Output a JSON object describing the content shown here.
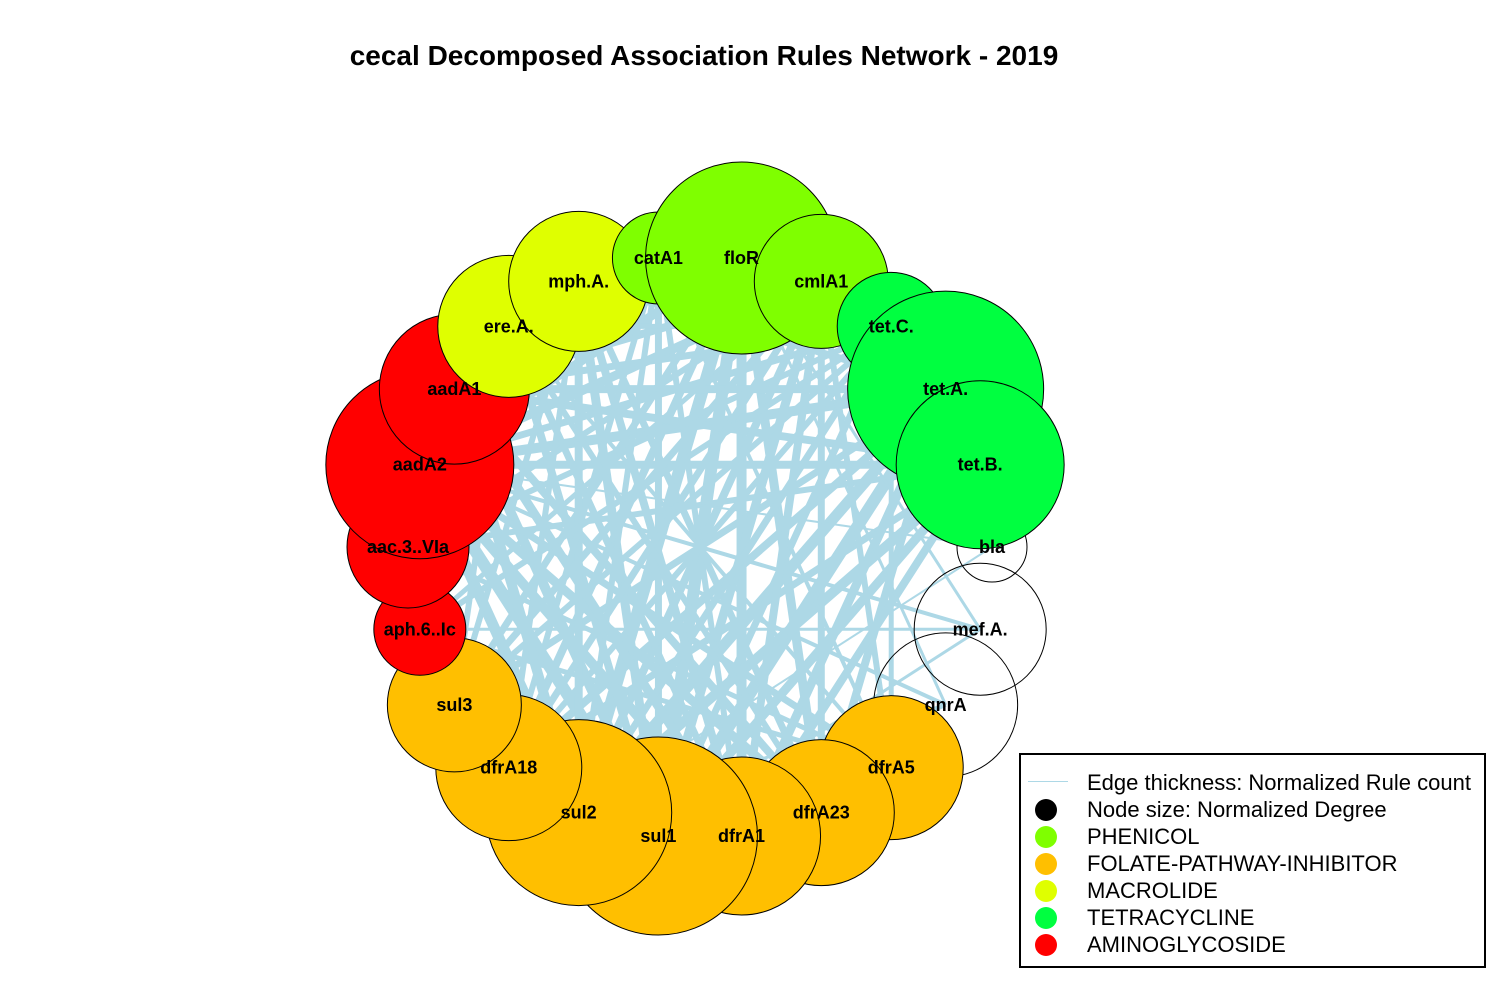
{
  "title": "cecal Decomposed Association Rules Network - 2019",
  "colors": {
    "edge": "#add8e6",
    "PHENICOL": "#7fff00",
    "FOLATE-PATHWAY-INHIBITOR": "#ffbf00",
    "MACROLIDE": "#dfff00",
    "TETRACYCLINE": "#00ff40",
    "AMINOGLYCOSIDE": "#ff0000",
    "none": "#ffffff"
  },
  "nodes": [
    {
      "label": "bla",
      "class": "none",
      "size": 35
    },
    {
      "label": "mef.A.",
      "class": "none",
      "size": 66
    },
    {
      "label": "qnrA",
      "class": "none",
      "size": 72
    },
    {
      "label": "dfrA5",
      "class": "FOLATE-PATHWAY-INHIBITOR",
      "size": 72
    },
    {
      "label": "dfrA23",
      "class": "FOLATE-PATHWAY-INHIBITOR",
      "size": 73
    },
    {
      "label": "dfrA1",
      "class": "FOLATE-PATHWAY-INHIBITOR",
      "size": 79
    },
    {
      "label": "sul1",
      "class": "FOLATE-PATHWAY-INHIBITOR",
      "size": 99
    },
    {
      "label": "sul2",
      "class": "FOLATE-PATHWAY-INHIBITOR",
      "size": 93
    },
    {
      "label": "dfrA18",
      "class": "FOLATE-PATHWAY-INHIBITOR",
      "size": 73
    },
    {
      "label": "sul3",
      "class": "FOLATE-PATHWAY-INHIBITOR",
      "size": 67
    },
    {
      "label": "aph.6..Ic",
      "class": "AMINOGLYCOSIDE",
      "size": 46
    },
    {
      "label": "aac.3..VIa",
      "class": "AMINOGLYCOSIDE",
      "size": 61
    },
    {
      "label": "aadA2",
      "class": "AMINOGLYCOSIDE",
      "size": 94
    },
    {
      "label": "aadA1",
      "class": "AMINOGLYCOSIDE",
      "size": 75
    },
    {
      "label": "ere.A.",
      "class": "MACROLIDE",
      "size": 71
    },
    {
      "label": "mph.A.",
      "class": "MACROLIDE",
      "size": 70
    },
    {
      "label": "catA1",
      "class": "PHENICOL",
      "size": 46
    },
    {
      "label": "floR",
      "class": "PHENICOL",
      "size": 96
    },
    {
      "label": "cmlA1",
      "class": "PHENICOL",
      "size": 67
    },
    {
      "label": "tet.C.",
      "class": "TETRACYCLINE",
      "size": 54
    },
    {
      "label": "tet.A.",
      "class": "TETRACYCLINE",
      "size": 98
    },
    {
      "label": "tet.B.",
      "class": "TETRACYCLINE",
      "size": 84
    }
  ],
  "edges": [
    [
      "floR",
      "sul1",
      12
    ],
    [
      "floR",
      "sul2",
      12
    ],
    [
      "floR",
      "dfrA1",
      10
    ],
    [
      "floR",
      "tet.A.",
      11
    ],
    [
      "floR",
      "aadA2",
      9
    ],
    [
      "floR",
      "dfrA23",
      9
    ],
    [
      "floR",
      "dfrA18",
      8
    ],
    [
      "floR",
      "aadA1",
      8
    ],
    [
      "floR",
      "sul3",
      7
    ],
    [
      "floR",
      "tet.B.",
      8
    ],
    [
      "tet.A.",
      "sul1",
      12
    ],
    [
      "tet.A.",
      "sul2",
      11
    ],
    [
      "tet.A.",
      "aadA2",
      10
    ],
    [
      "tet.A.",
      "dfrA1",
      9
    ],
    [
      "tet.A.",
      "dfrA18",
      8
    ],
    [
      "tet.A.",
      "aadA1",
      8
    ],
    [
      "tet.A.",
      "mph.A.",
      7
    ],
    [
      "tet.A.",
      "sul3",
      7
    ],
    [
      "tet.A.",
      "dfrA23",
      8
    ],
    [
      "tet.B.",
      "sul2",
      10
    ],
    [
      "tet.B.",
      "sul1",
      9
    ],
    [
      "tet.B.",
      "aadA1",
      8
    ],
    [
      "tet.B.",
      "aadA2",
      8
    ],
    [
      "tet.B.",
      "dfrA1",
      8
    ],
    [
      "tet.B.",
      "dfrA18",
      7
    ],
    [
      "tet.B.",
      "aac.3..VIa",
      6
    ],
    [
      "sul1",
      "aadA2",
      12
    ],
    [
      "sul1",
      "aadA1",
      10
    ],
    [
      "sul1",
      "mph.A.",
      9
    ],
    [
      "sul1",
      "ere.A.",
      8
    ],
    [
      "sul1",
      "cmlA1",
      9
    ],
    [
      "sul1",
      "catA1",
      7
    ],
    [
      "sul1",
      "tet.C.",
      7
    ],
    [
      "sul1",
      "dfrA1",
      10
    ],
    [
      "sul2",
      "aadA2",
      11
    ],
    [
      "sul2",
      "aadA1",
      10
    ],
    [
      "sul2",
      "mph.A.",
      8
    ],
    [
      "sul2",
      "cmlA1",
      8
    ],
    [
      "sul2",
      "catA1",
      6
    ],
    [
      "sul2",
      "tet.C.",
      7
    ],
    [
      "sul2",
      "dfrA5",
      6
    ],
    [
      "aadA2",
      "dfrA1",
      10
    ],
    [
      "aadA2",
      "dfrA23",
      9
    ],
    [
      "aadA2",
      "dfrA5",
      7
    ],
    [
      "aadA2",
      "cmlA1",
      9
    ],
    [
      "aadA2",
      "mph.A.",
      7
    ],
    [
      "aadA2",
      "tet.C.",
      7
    ],
    [
      "aadA2",
      "qnrA",
      4
    ],
    [
      "aadA2",
      "mef.A.",
      4
    ],
    [
      "aadA1",
      "dfrA1",
      9
    ],
    [
      "aadA1",
      "dfrA23",
      8
    ],
    [
      "aadA1",
      "cmlA1",
      8
    ],
    [
      "aadA1",
      "tet.C.",
      7
    ],
    [
      "aadA1",
      "catA1",
      6
    ],
    [
      "dfrA1",
      "mph.A.",
      8
    ],
    [
      "dfrA1",
      "cmlA1",
      8
    ],
    [
      "dfrA1",
      "ere.A.",
      7
    ],
    [
      "dfrA1",
      "catA1",
      6
    ],
    [
      "dfrA23",
      "mph.A.",
      7
    ],
    [
      "dfrA23",
      "cmlA1",
      7
    ],
    [
      "dfrA23",
      "ere.A.",
      6
    ],
    [
      "dfrA18",
      "cmlA1",
      7
    ],
    [
      "dfrA18",
      "mph.A.",
      6
    ],
    [
      "dfrA18",
      "catA1",
      6
    ],
    [
      "dfrA18",
      "tet.C.",
      6
    ],
    [
      "sul3",
      "cmlA1",
      7
    ],
    [
      "sul3",
      "ere.A.",
      6
    ],
    [
      "sul3",
      "tet.C.",
      6
    ],
    [
      "sul3",
      "mph.A.",
      6
    ],
    [
      "aac.3..VIa",
      "cmlA1",
      6
    ],
    [
      "aac.3..VIa",
      "tet.C.",
      6
    ],
    [
      "aac.3..VIa",
      "dfrA5",
      5
    ],
    [
      "aac.3..VIa",
      "mph.A.",
      5
    ],
    [
      "aph.6..Ic",
      "tet.C.",
      6
    ],
    [
      "aph.6..Ic",
      "cmlA1",
      5
    ],
    [
      "aph.6..Ic",
      "dfrA5",
      5
    ],
    [
      "aph.6..Ic",
      "mef.A.",
      3
    ],
    [
      "ere.A.",
      "mph.A.",
      6
    ],
    [
      "ere.A.",
      "tet.C.",
      5
    ],
    [
      "ere.A.",
      "dfrA5",
      4
    ],
    [
      "catA1",
      "cmlA1",
      5
    ],
    [
      "catA1",
      "dfrA5",
      4
    ],
    [
      "cmlA1",
      "dfrA5",
      6
    ],
    [
      "tet.C.",
      "dfrA5",
      5
    ],
    [
      "qnrA",
      "sul1",
      4
    ],
    [
      "qnrA",
      "sul2",
      3
    ],
    [
      "qnrA",
      "floR",
      3
    ],
    [
      "mef.A.",
      "sul1",
      3
    ],
    [
      "mef.A.",
      "floR",
      3
    ],
    [
      "bla",
      "sul2",
      2
    ],
    [
      "bla",
      "aadA2",
      2
    ],
    [
      "bla",
      "tet.A.",
      2
    ]
  ],
  "legend": [
    {
      "label": "Edge thickness: Normalized Rule count",
      "key": "line",
      "color": "#add8e6"
    },
    {
      "label": "Node size: Normalized Degree",
      "key": "circle",
      "color": "#000000"
    },
    {
      "label": "PHENICOL",
      "key": "circle",
      "color": "#7fff00"
    },
    {
      "label": "FOLATE-PATHWAY-INHIBITOR",
      "key": "circle",
      "color": "#ffbf00"
    },
    {
      "label": "MACROLIDE",
      "key": "circle",
      "color": "#dfff00"
    },
    {
      "label": "TETRACYCLINE",
      "key": "circle",
      "color": "#00ff40"
    },
    {
      "label": "AMINOGLYCOSIDE",
      "key": "circle",
      "color": "#ff0000"
    }
  ]
}
